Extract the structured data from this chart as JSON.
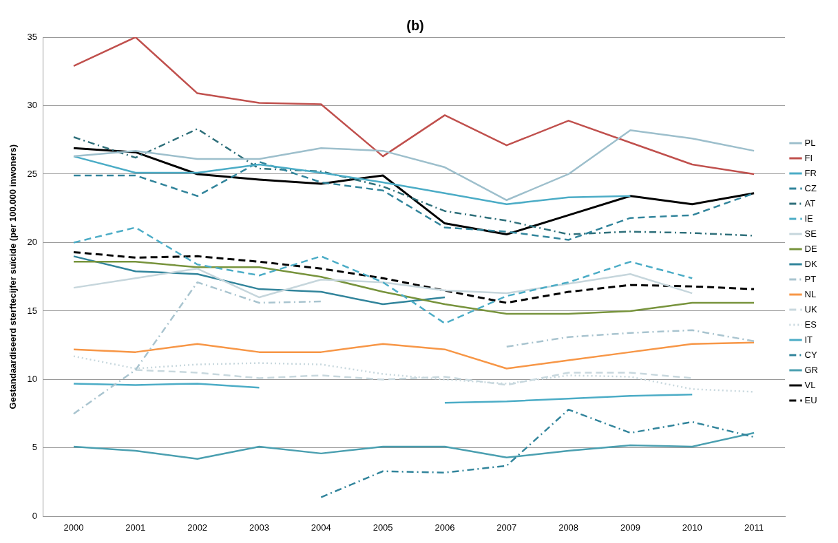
{
  "chart_data": {
    "type": "line",
    "title": "(b)",
    "ylabel": "Gestandaardiseerd sterftecijfer suïcide (per 100.000 inwoners)",
    "categories": [
      "2000",
      "2001",
      "2002",
      "2003",
      "2004",
      "2005",
      "2006",
      "2007",
      "2008",
      "2009",
      "2010",
      "2011"
    ],
    "ylim": [
      0,
      35
    ],
    "yticks": [
      0,
      5,
      10,
      15,
      20,
      25,
      30,
      35
    ],
    "grid": "y",
    "legend": "right",
    "marker": "none",
    "series": [
      {
        "name": "PL",
        "color": "#9dbfcc",
        "line_style": "solid",
        "values": [
          26.3,
          26.7,
          26.1,
          26.1,
          26.9,
          26.7,
          25.5,
          23.1,
          25.0,
          28.2,
          27.6,
          26.7
        ]
      },
      {
        "name": "FI",
        "color": "#c0504d",
        "line_style": "solid",
        "values": [
          32.9,
          35.0,
          30.9,
          30.2,
          30.1,
          26.3,
          29.3,
          27.1,
          28.9,
          27.3,
          25.7,
          25.0
        ]
      },
      {
        "name": "FR",
        "color": "#4bacc6",
        "line_style": "solid",
        "values": [
          26.3,
          25.1,
          25.1,
          25.7,
          25.1,
          24.4,
          23.6,
          22.8,
          23.3,
          23.4,
          null,
          null
        ]
      },
      {
        "name": "CZ",
        "color": "#31849b",
        "line_style": "dashed",
        "values": [
          24.9,
          24.9,
          23.4,
          25.9,
          24.4,
          23.8,
          21.1,
          20.8,
          20.2,
          21.8,
          22.0,
          23.6
        ]
      },
      {
        "name": "AT",
        "color": "#2e6f7a",
        "line_style": "dashdot",
        "values": [
          27.7,
          26.2,
          28.3,
          25.4,
          25.2,
          24.1,
          22.3,
          21.6,
          20.6,
          20.8,
          20.7,
          20.5
        ]
      },
      {
        "name": "IE",
        "color": "#4bacc6",
        "line_style": "dashed",
        "values": [
          20.0,
          21.1,
          18.4,
          17.6,
          19.0,
          17.1,
          14.1,
          16.1,
          17.1,
          18.6,
          17.4,
          null
        ]
      },
      {
        "name": "SE",
        "color": "#c6d6dc",
        "line_style": "solid",
        "values": [
          16.7,
          17.4,
          18.1,
          16.0,
          17.3,
          17.1,
          16.5,
          16.3,
          17.0,
          17.7,
          16.3,
          null
        ]
      },
      {
        "name": "DE",
        "color": "#77933c",
        "line_style": "solid",
        "values": [
          18.6,
          18.6,
          18.2,
          18.2,
          17.5,
          16.4,
          15.5,
          14.8,
          14.8,
          15.0,
          15.6,
          15.6
        ]
      },
      {
        "name": "DK",
        "color": "#31849b",
        "line_style": "solid",
        "values": [
          19.0,
          17.9,
          17.7,
          16.6,
          16.4,
          15.5,
          16.0,
          null,
          null,
          null,
          null,
          null
        ]
      },
      {
        "name": "PT",
        "color": "#a9c4cf",
        "line_style": "dashdot",
        "values": [
          7.5,
          10.7,
          17.1,
          15.6,
          15.7,
          null,
          null,
          12.4,
          13.1,
          13.4,
          13.6,
          12.8
        ]
      },
      {
        "name": "NL",
        "color": "#f79646",
        "line_style": "solid",
        "values": [
          12.2,
          12.0,
          12.6,
          12.0,
          12.0,
          12.6,
          12.2,
          10.8,
          11.4,
          12.0,
          12.6,
          12.7
        ]
      },
      {
        "name": "UK",
        "color": "#c8d8de",
        "line_style": "dashed",
        "values": [
          null,
          10.7,
          10.5,
          10.1,
          10.3,
          10.0,
          10.2,
          9.6,
          10.5,
          10.5,
          10.1,
          null
        ]
      },
      {
        "name": "ES",
        "color": "#c8d8de",
        "line_style": "dotted",
        "values": [
          11.7,
          10.8,
          11.1,
          11.2,
          11.1,
          10.4,
          10.0,
          9.7,
          10.3,
          10.2,
          9.3,
          9.1
        ]
      },
      {
        "name": "IT",
        "color": "#4bacc6",
        "line_style": "solid",
        "values": [
          9.7,
          9.6,
          9.7,
          9.4,
          null,
          null,
          8.3,
          8.4,
          8.6,
          8.8,
          8.9,
          null
        ]
      },
      {
        "name": "CY",
        "color": "#31849b",
        "line_style": "dashdot",
        "values": [
          null,
          null,
          null,
          null,
          1.4,
          3.3,
          3.2,
          3.7,
          7.8,
          6.1,
          6.9,
          5.8
        ]
      },
      {
        "name": "GR",
        "color": "#4a9fb0",
        "line_style": "solid",
        "values": [
          5.1,
          4.8,
          4.2,
          5.1,
          4.6,
          5.1,
          5.1,
          4.3,
          4.8,
          5.2,
          5.1,
          6.1
        ]
      },
      {
        "name": "VL",
        "color": "#000000",
        "line_style": "solid",
        "values": [
          26.9,
          26.6,
          25.0,
          24.6,
          24.3,
          24.9,
          21.4,
          20.6,
          22.0,
          23.4,
          22.8,
          23.6
        ]
      },
      {
        "name": "EU",
        "color": "#000000",
        "line_style": "dashed",
        "values": [
          19.3,
          18.9,
          19.0,
          18.6,
          18.1,
          17.4,
          16.5,
          15.6,
          16.4,
          16.9,
          16.8,
          16.6
        ]
      }
    ]
  }
}
